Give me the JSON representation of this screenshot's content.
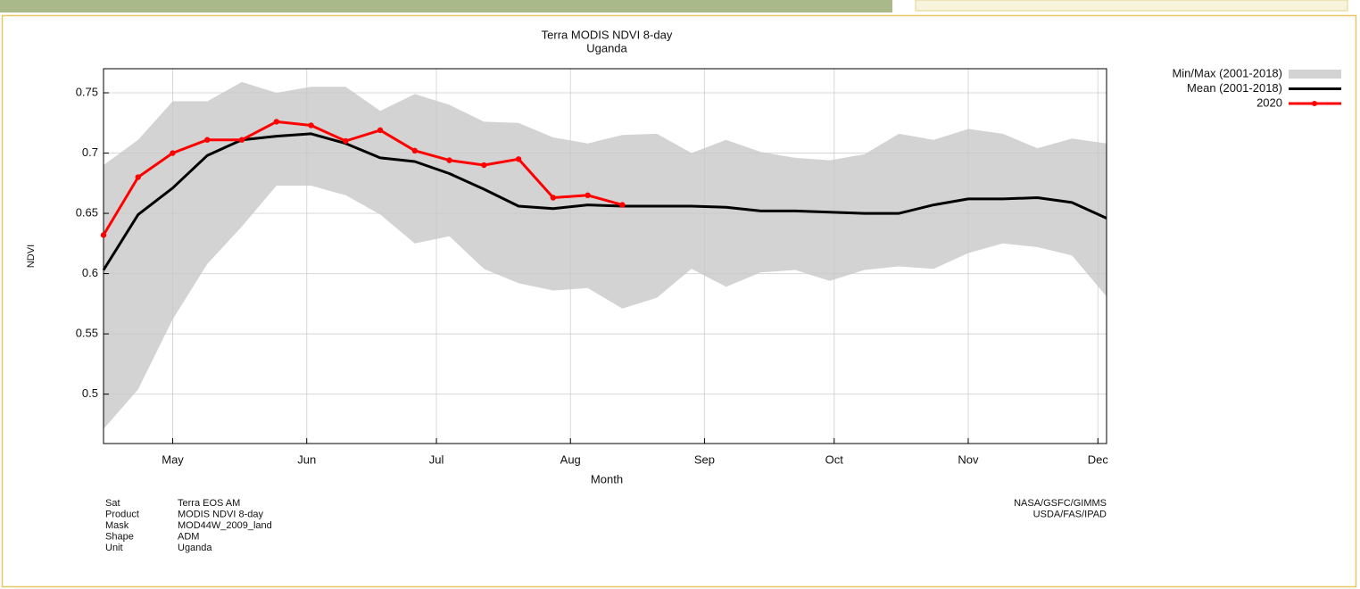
{
  "chart_data": {
    "type": "line",
    "title": "Terra MODIS NDVI 8-day",
    "subtitle": "Uganda",
    "xlabel": "Month",
    "ylabel": "NDVI",
    "x": [
      105,
      113,
      121,
      129,
      137,
      145,
      153,
      161,
      169,
      177,
      185,
      193,
      201,
      209,
      217,
      225,
      233,
      241,
      249,
      257,
      265,
      273,
      281,
      289,
      297,
      305,
      313,
      321,
      329,
      337
    ],
    "xlim": [
      105,
      337
    ],
    "xticks": [
      {
        "value": 121,
        "label": "May"
      },
      {
        "value": 152,
        "label": "Jun"
      },
      {
        "value": 182,
        "label": "Jul"
      },
      {
        "value": 213,
        "label": "Aug"
      },
      {
        "value": 244,
        "label": "Sep"
      },
      {
        "value": 274,
        "label": "Oct"
      },
      {
        "value": 305,
        "label": "Nov"
      },
      {
        "value": 335,
        "label": "Dec"
      }
    ],
    "ylim": [
      0.459,
      0.77
    ],
    "yticks": [
      0.5,
      0.55,
      0.6,
      0.65,
      0.7,
      0.75
    ],
    "grid": true,
    "legend": "right",
    "series": [
      {
        "name": "Min/Max (2001-2018)",
        "color": "#d3d3d3",
        "kind": "band",
        "min": [
          0.471,
          0.504,
          0.562,
          0.608,
          0.639,
          0.673,
          0.673,
          0.665,
          0.649,
          0.625,
          0.631,
          0.604,
          0.592,
          0.586,
          0.588,
          0.571,
          0.58,
          0.604,
          0.589,
          0.601,
          0.603,
          0.594,
          0.603,
          0.606,
          0.604,
          0.617,
          0.625,
          0.622,
          0.615,
          0.581
        ],
        "max": [
          0.69,
          0.711,
          0.743,
          0.743,
          0.759,
          0.75,
          0.755,
          0.755,
          0.735,
          0.749,
          0.74,
          0.726,
          0.725,
          0.713,
          0.708,
          0.715,
          0.716,
          0.7,
          0.711,
          0.701,
          0.696,
          0.694,
          0.699,
          0.716,
          0.711,
          0.72,
          0.716,
          0.704,
          0.712,
          0.708
        ]
      },
      {
        "name": "Mean (2001-2018)",
        "color": "#000000",
        "kind": "line",
        "values": [
          0.603,
          0.649,
          0.671,
          0.698,
          0.711,
          0.714,
          0.716,
          0.708,
          0.696,
          0.693,
          0.683,
          0.67,
          0.656,
          0.654,
          0.657,
          0.656,
          0.656,
          0.656,
          0.655,
          0.652,
          0.652,
          0.651,
          0.65,
          0.65,
          0.657,
          0.662,
          0.662,
          0.663,
          0.659,
          0.646
        ]
      },
      {
        "name": "2020",
        "color": "#ff0000",
        "kind": "line",
        "markers": true,
        "values": [
          0.632,
          0.68,
          0.7,
          0.711,
          0.711,
          0.726,
          0.723,
          0.71,
          0.719,
          0.702,
          0.694,
          0.69,
          0.695,
          0.663,
          0.665,
          0.657,
          null,
          null,
          null,
          null,
          null,
          null,
          null,
          null,
          null,
          null,
          null,
          null,
          null,
          null
        ]
      }
    ],
    "metadata": [
      {
        "key": "Sat",
        "value": "Terra EOS AM"
      },
      {
        "key": "Product",
        "value": "MODIS NDVI 8-day"
      },
      {
        "key": "Mask",
        "value": "MOD44W_2009_land"
      },
      {
        "key": "Shape",
        "value": "ADM"
      },
      {
        "key": "Unit",
        "value": "Uganda"
      }
    ],
    "credits": [
      "NASA/GSFC/GIMMS",
      "USDA/FAS/IPAD"
    ]
  }
}
